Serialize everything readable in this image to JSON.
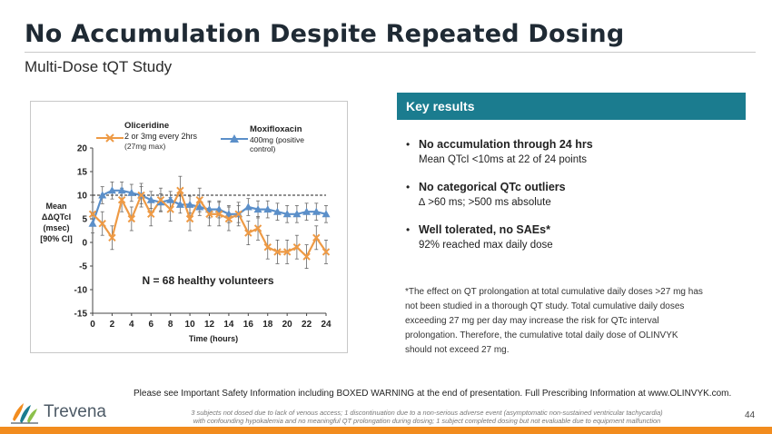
{
  "header": {
    "title": "No Accumulation Despite Repeated Dosing",
    "subtitle": "Multi-Dose tQT Study"
  },
  "chart_data": {
    "type": "line",
    "title": "",
    "xlabel": "Time (hours)",
    "ylabel": [
      "Mean",
      "ΔΔQTcI",
      "(msec)",
      "[90% CI]"
    ],
    "xlim": [
      0,
      24
    ],
    "ylim": [
      -15,
      20
    ],
    "x_ticks": [
      "0",
      "2",
      "4",
      "6",
      "8",
      "10",
      "12",
      "14",
      "16",
      "18",
      "20",
      "22",
      "24"
    ],
    "y_ticks": [
      "20",
      "15",
      "10",
      "5",
      "0",
      "-5",
      "-10",
      "-15"
    ],
    "reference_line": 10,
    "annotation": "N = 68 healthy volunteers",
    "series": [
      {
        "name": "Oliceridine",
        "legend_lines": [
          "2 or 3mg every 2hrs",
          "(27mg max)"
        ],
        "color": "#ee9a45",
        "marker": "x",
        "x": [
          0,
          1,
          2,
          3,
          4,
          5,
          6,
          7,
          8,
          9,
          10,
          11,
          12,
          13,
          14,
          15,
          16,
          17,
          18,
          19,
          20,
          21,
          22,
          23,
          24
        ],
        "values": [
          6,
          4,
          1,
          9,
          5,
          10,
          6,
          9,
          7,
          11,
          5,
          9,
          6,
          6,
          5,
          6,
          2,
          3,
          -1,
          -2,
          -2,
          -1,
          -3,
          1,
          -2
        ],
        "ci_half": [
          2.5,
          2.5,
          2.5,
          2.5,
          2.5,
          2.5,
          2.5,
          2.5,
          2.5,
          3,
          2.5,
          2.5,
          2.5,
          2.5,
          2.5,
          2.5,
          2.5,
          2.5,
          2.5,
          2.5,
          2.5,
          2.5,
          2.5,
          2.5,
          2.5
        ]
      },
      {
        "name": "Moxifloxacin",
        "legend_lines": [
          "400mg (positive",
          "control)"
        ],
        "color": "#5b8fc9",
        "marker": "triangle",
        "x": [
          0,
          1,
          2,
          3,
          4,
          5,
          6,
          7,
          8,
          9,
          10,
          11,
          12,
          13,
          14,
          15,
          16,
          17,
          18,
          19,
          20,
          21,
          22,
          23,
          24
        ],
        "values": [
          4,
          10,
          11,
          11,
          10.5,
          10,
          9,
          8.5,
          9,
          8,
          8,
          7.5,
          7,
          7,
          6,
          6,
          7.5,
          7,
          7,
          6.5,
          6,
          6,
          6.5,
          6.5,
          6
        ],
        "ci_half": [
          2,
          1.8,
          1.8,
          1.8,
          1.8,
          1.8,
          1.8,
          1.8,
          1.8,
          1.8,
          1.8,
          1.8,
          1.8,
          1.8,
          1.8,
          1.8,
          1.8,
          1.8,
          1.8,
          1.8,
          1.8,
          1.8,
          1.8,
          1.8,
          1.8
        ]
      }
    ]
  },
  "key_results": {
    "header": "Key results",
    "bullets": [
      {
        "head": "No accumulation through 24 hrs",
        "sub": "Mean QTcI <10ms at 22 of 24 points"
      },
      {
        "head": "No categorical QTc outliers",
        "sub": "∆ >60 ms;  >500 ms absolute"
      },
      {
        "head": "Well tolerated, no SAEs*",
        "sub": "92% reached max daily dose"
      }
    ],
    "footnote": "*The effect on QT prolongation at total cumulative daily doses >27 mg has not been studied in a thorough QT study. Total cumulative daily doses exceeding 27 mg per day may increase the risk for QTc interval prolongation. Therefore, the cumulative total daily dose of OLINVYK should not exceed 27 mg."
  },
  "footer": {
    "safety": "Please see Important Safety Information including BOXED WARNING at the end of presentation. Full Prescribing Information at www.OLINVYK.com.",
    "logo_text": "Trevena",
    "logo_icon": "trevena-logo-icon",
    "fine_print_1": "3 subjects not dosed due to lack of venous access; 1 discontinuation due to a non-serious adverse event (asymptomatic non-sustained ventricular tachycardia)",
    "fine_print_2": "with confounding hypokalemia and no meaningful QT prolongation during dosing; 1 subject completed dosing but not evaluable due to equipment malfunction",
    "page_number": "44",
    "bar_color": "#f28c1e"
  }
}
